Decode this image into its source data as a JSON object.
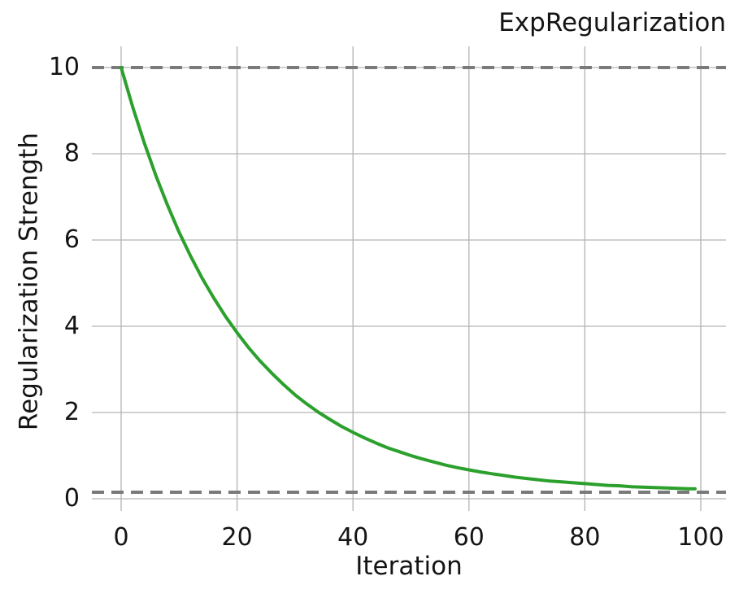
{
  "chart": {
    "title": "ExpRegularization",
    "xlabel": "Iteration",
    "ylabel": "Regularization Strength"
  },
  "chart_data": {
    "type": "line",
    "title": "ExpRegularization",
    "xlabel": "Iteration",
    "ylabel": "Regularization Strength",
    "xlim": [
      -5.05,
      104.35
    ],
    "ylim": [
      -0.283,
      10.49
    ],
    "xticks": [
      0,
      20,
      40,
      60,
      80,
      100
    ],
    "yticks": [
      0,
      2,
      4,
      6,
      8,
      10
    ],
    "grid": true,
    "grid_color": "#b3b3b3",
    "background": "#ffffff",
    "legend": "none",
    "series": [
      {
        "name": "regularization-strength-curve",
        "color": "#2ca02c",
        "line_width": 4,
        "x": [
          0,
          2,
          4,
          6,
          8,
          10,
          12,
          14,
          16,
          18,
          20,
          22,
          24,
          26,
          28,
          30,
          32,
          34,
          36,
          38,
          40,
          42,
          44,
          46,
          48,
          50,
          52,
          54,
          56,
          58,
          60,
          62,
          64,
          66,
          68,
          70,
          72,
          74,
          76,
          78,
          80,
          82,
          84,
          86,
          88,
          90,
          92,
          94,
          96,
          98,
          99
        ],
        "y": [
          10.0,
          9.08,
          8.25,
          7.49,
          6.81,
          6.18,
          5.62,
          5.11,
          4.65,
          4.23,
          3.85,
          3.5,
          3.19,
          2.91,
          2.65,
          2.41,
          2.2,
          2.01,
          1.84,
          1.68,
          1.54,
          1.41,
          1.29,
          1.18,
          1.09,
          1.0,
          0.92,
          0.85,
          0.78,
          0.72,
          0.67,
          0.62,
          0.58,
          0.54,
          0.5,
          0.47,
          0.44,
          0.41,
          0.39,
          0.37,
          0.35,
          0.33,
          0.31,
          0.3,
          0.28,
          0.27,
          0.26,
          0.25,
          0.24,
          0.23,
          0.23
        ]
      }
    ],
    "reference_lines": [
      {
        "name": "upper-dashed-line",
        "y": 10.0,
        "style": "dashed",
        "color": "#7a7a7a",
        "line_width": 4
      },
      {
        "name": "lower-dashed-line",
        "y": 0.15,
        "style": "dashed",
        "color": "#7a7a7a",
        "line_width": 4
      }
    ]
  }
}
